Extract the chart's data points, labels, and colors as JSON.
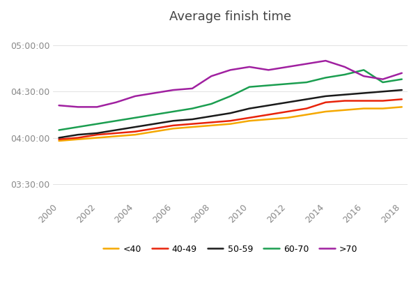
{
  "title": "Average finish time",
  "years": [
    2000,
    2001,
    2002,
    2003,
    2004,
    2005,
    2006,
    2007,
    2008,
    2009,
    2010,
    2011,
    2012,
    2013,
    2014,
    2015,
    2016,
    2017,
    2018
  ],
  "series": {
    "<40": [
      238,
      239,
      240,
      241,
      242,
      244,
      246,
      247,
      248,
      249,
      251,
      252,
      253,
      255,
      257,
      258,
      259,
      259,
      260
    ],
    "40-49": [
      239,
      240,
      242,
      243,
      244,
      246,
      248,
      249,
      250,
      251,
      253,
      255,
      257,
      259,
      263,
      264,
      264,
      264,
      265
    ],
    "50-59": [
      240,
      242,
      243,
      245,
      247,
      249,
      251,
      252,
      254,
      256,
      259,
      261,
      263,
      265,
      267,
      268,
      269,
      270,
      271
    ],
    "60-70": [
      245,
      247,
      249,
      251,
      253,
      255,
      257,
      259,
      262,
      267,
      273,
      274,
      275,
      276,
      279,
      281,
      284,
      276,
      278
    ],
    ">70": [
      261,
      260,
      260,
      263,
      267,
      269,
      271,
      272,
      280,
      284,
      286,
      284,
      286,
      288,
      290,
      286,
      280,
      278,
      282
    ]
  },
  "colors": {
    "<40": "#F5A800",
    "40-49": "#E8230A",
    "50-59": "#1A1A1A",
    "60-70": "#1B9E50",
    ">70": "#A020A0"
  },
  "yticks_minutes": [
    210,
    240,
    270,
    300
  ],
  "ytick_labels": [
    "03:30:00",
    "04:00:00",
    "04:30:00",
    "05:00:00"
  ],
  "ylim_minutes": [
    200,
    310
  ],
  "background_color": "#ffffff"
}
